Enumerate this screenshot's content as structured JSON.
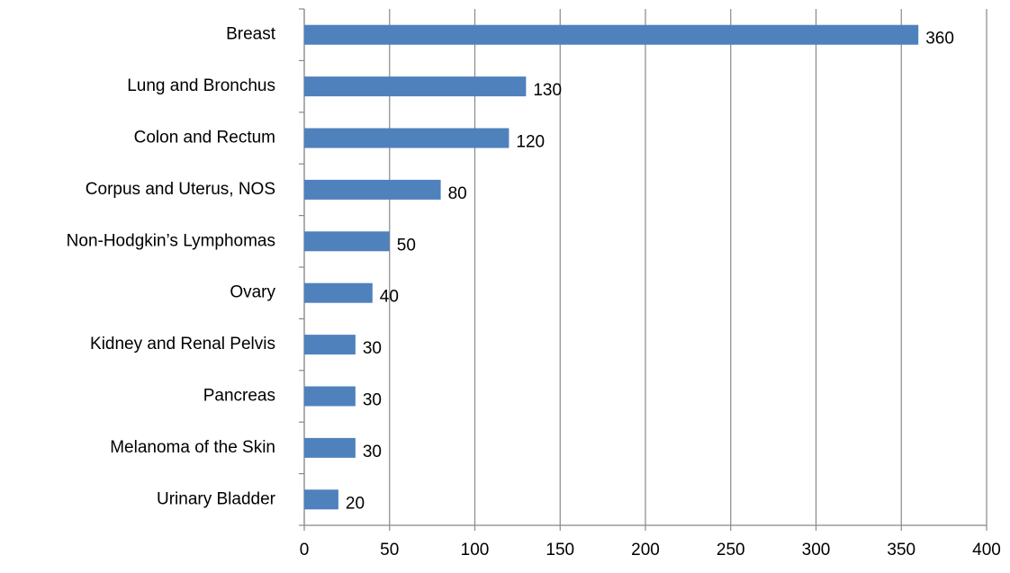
{
  "chart_data": {
    "type": "bar",
    "orientation": "horizontal",
    "categories": [
      "Breast",
      "Lung and Bronchus",
      "Colon and Rectum",
      "Corpus and Uterus, NOS",
      "Non-Hodgkin’s Lymphomas",
      "Ovary",
      "Kidney and Renal Pelvis",
      "Pancreas",
      "Melanoma of the Skin",
      "Urinary Bladder"
    ],
    "values": [
      360,
      130,
      120,
      80,
      50,
      40,
      30,
      30,
      30,
      20
    ],
    "color": "#4f81bd",
    "xlim": [
      0,
      400
    ],
    "xticks": [
      0,
      50,
      100,
      150,
      200,
      250,
      300,
      350,
      400
    ],
    "grid": true
  }
}
